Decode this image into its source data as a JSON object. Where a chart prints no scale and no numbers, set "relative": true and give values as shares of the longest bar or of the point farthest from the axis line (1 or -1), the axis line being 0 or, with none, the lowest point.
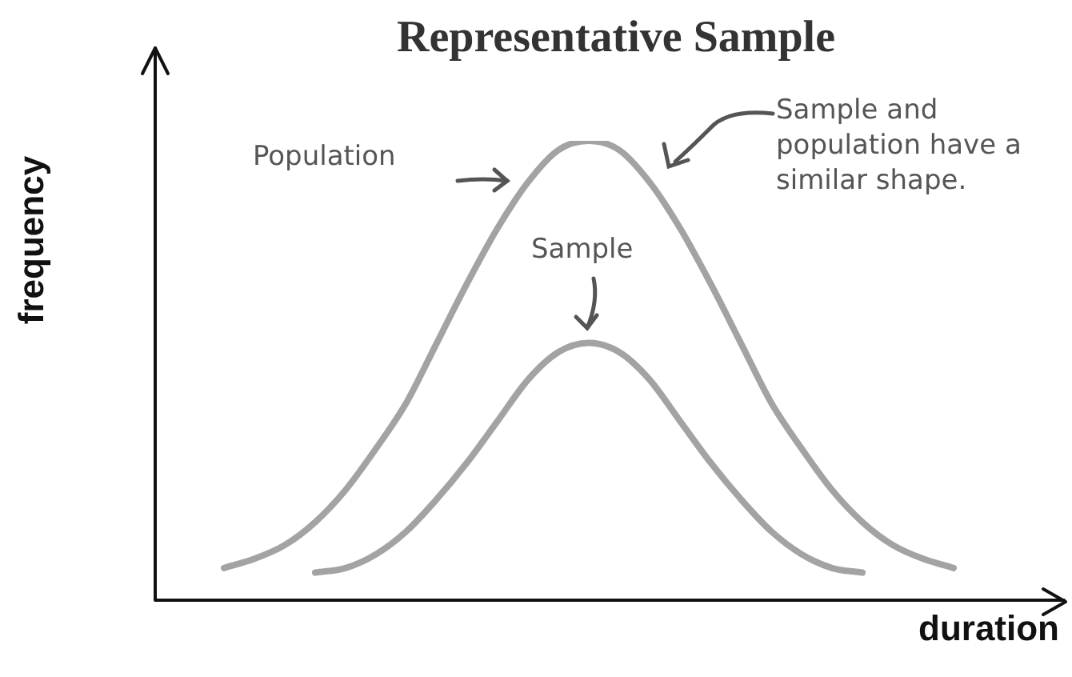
{
  "chart_data": {
    "type": "line",
    "title": "Representative Sample",
    "xlabel": "duration",
    "ylabel": "frequency",
    "relative": true,
    "categories": [
      null,
      null,
      null,
      null,
      null,
      null,
      null,
      null,
      null,
      null,
      null,
      null,
      null,
      null,
      null,
      null,
      null,
      null,
      null,
      null,
      null,
      null,
      null,
      null,
      null
    ],
    "series": [
      {
        "color": "#a3a3a3",
        "values": [
          0.07,
          0.09,
          0.12,
          0.17,
          0.24,
          0.33,
          0.43,
          0.56,
          0.69,
          0.81,
          0.91,
          0.98,
          1.0,
          0.98,
          0.91,
          0.81,
          0.69,
          0.56,
          0.43,
          0.33,
          0.24,
          0.17,
          0.12,
          0.09,
          0.07
        ]
      },
      {
        "color": "#a3a3a3",
        "values": [
          null,
          null,
          null,
          0.06,
          0.07,
          0.1,
          0.15,
          0.22,
          0.3,
          0.39,
          0.48,
          0.54,
          0.56,
          0.54,
          0.48,
          0.39,
          0.3,
          0.22,
          0.15,
          0.1,
          0.07,
          0.06,
          null,
          null,
          null
        ]
      }
    ],
    "annotations": [
      "Population",
      "Sample",
      "Sample and population have a similar shape."
    ]
  }
}
